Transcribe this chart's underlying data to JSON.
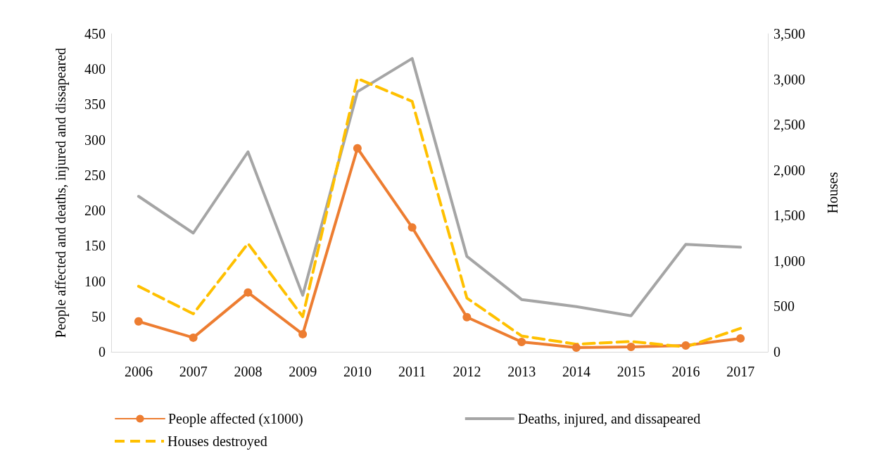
{
  "chart_data": {
    "type": "line",
    "categories": [
      "2006",
      "2007",
      "2008",
      "2009",
      "2010",
      "2011",
      "2012",
      "2013",
      "2014",
      "2015",
      "2016",
      "2017"
    ],
    "ylabel": "People affected and deaths, injured and dissapeared",
    "y2label": "Houses",
    "ylim": [
      0,
      450
    ],
    "yticks": [
      0,
      50,
      100,
      150,
      200,
      250,
      300,
      350,
      400,
      450
    ],
    "y2lim": [
      0,
      3500
    ],
    "y2ticks": [
      0,
      500,
      {
        "value": 1000,
        "label": "1,000"
      },
      {
        "value": 1500,
        "label": "1,500"
      },
      {
        "value": 2000,
        "label": "2,000"
      },
      {
        "value": 2500,
        "label": "2,500"
      },
      {
        "value": 3000,
        "label": "3,000"
      },
      {
        "value": 3500,
        "label": "3,500"
      }
    ],
    "grid": false,
    "legend": "bottom",
    "series": [
      {
        "name": "People affected (x1000)",
        "color": "#ed7d31",
        "marker": "circle",
        "line_style": "solid",
        "values": [
          43,
          20,
          84,
          25,
          288,
          176,
          49,
          14,
          6,
          7,
          9,
          19
        ]
      },
      {
        "name": "Deaths, injured, and dissapeared",
        "color": "#a5a5a5",
        "marker": "none",
        "line_style": "solid",
        "values": [
          220,
          168,
          283,
          80,
          368,
          415,
          135,
          74,
          64,
          51,
          152,
          148
        ]
      },
      {
        "name": "Houses destroyed",
        "color": "#ffc000",
        "marker": "none",
        "line_style": "dashed",
        "axis": "y2",
        "values": [
          721,
          418,
          1192,
          387,
          3007,
          2756,
          592,
          175,
          84,
          114,
          53,
          258
        ]
      }
    ]
  }
}
